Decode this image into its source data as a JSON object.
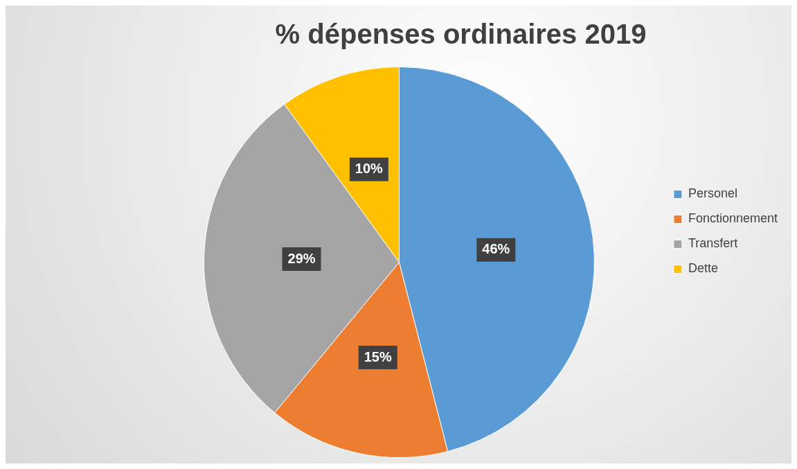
{
  "chart_data": {
    "type": "pie",
    "title": "% dépenses ordinaires 2019",
    "categories": [
      "Personel",
      "Fonctionnement",
      "Transfert",
      "Dette"
    ],
    "values": [
      46,
      15,
      29,
      10
    ],
    "colors": [
      "#5b9bd5",
      "#ed7d31",
      "#a5a5a5",
      "#ffc000"
    ],
    "value_labels": [
      "46%",
      "15%",
      "29%",
      "10%"
    ],
    "legend": "right"
  }
}
